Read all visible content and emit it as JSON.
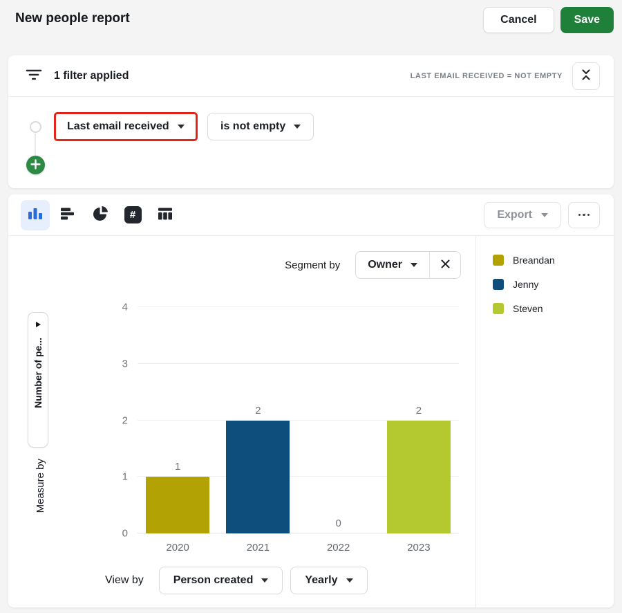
{
  "page": {
    "title": "New people report"
  },
  "header": {
    "cancel_label": "Cancel",
    "save_label": "Save"
  },
  "filter_panel": {
    "summary": "1 filter applied",
    "applied_summary": "LAST EMAIL RECEIVED = NOT EMPTY",
    "field_value": "Last email received",
    "operator_value": "is not empty"
  },
  "toolbar": {
    "export_label": "Export",
    "chart_types": [
      "column",
      "bar",
      "pie",
      "number",
      "table"
    ],
    "selected_chart_type": "column",
    "number_icon_glyph": "#"
  },
  "chart_panel": {
    "segment_by_label": "Segment by",
    "segment_value": "Owner",
    "y_axis_button_label": "Number of pe...",
    "measure_by_label": "Measure by",
    "view_by_label": "View by",
    "view_field_value": "Person created",
    "view_interval_value": "Yearly"
  },
  "chart_data": {
    "type": "bar",
    "categories": [
      "2020",
      "2021",
      "2022",
      "2023"
    ],
    "values": [
      1,
      2,
      0,
      2
    ],
    "value_labels": [
      "1",
      "2",
      "0",
      "2"
    ],
    "segments": [
      "Breandan",
      "Jenny",
      null,
      "Steven"
    ],
    "bar_colors": [
      "#b3a204",
      "#0d4e7d",
      null,
      "#b4c92f"
    ],
    "ylim": [
      0,
      4
    ],
    "yticks": [
      0,
      1,
      2,
      3,
      4
    ],
    "grid": true,
    "legend_position": "right",
    "legend": [
      {
        "label": "Breandan",
        "color": "#b3a204"
      },
      {
        "label": "Jenny",
        "color": "#0d4e7d"
      },
      {
        "label": "Steven",
        "color": "#b4c92f"
      }
    ]
  },
  "icons": {
    "close": "✕",
    "plus": "+",
    "collapse": "collapse-vertical",
    "filter": "filter-lines",
    "chevron": "▾",
    "expand": "▶",
    "more": "•••"
  },
  "colors": {
    "save_green": "#1f8139",
    "add_button_green": "#2c8a44",
    "highlight_red": "#e1251b",
    "selected_icon_blue": "#2b6cd9",
    "selected_icon_bg": "#e7effc",
    "page_background": "#f4f4f5",
    "axis_text_gray": "#6f747a"
  }
}
